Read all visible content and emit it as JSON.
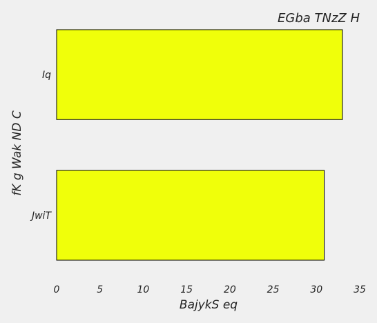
{
  "chart_data": {
    "type": "bar",
    "orientation": "horizontal",
    "title": "EGba  TNzZ H",
    "xlabel": "BajykS eq",
    "ylabel": "fK g Wak ND C",
    "categories": [
      "Iq",
      "JwiT"
    ],
    "values": [
      33.0,
      30.9
    ],
    "xlim": [
      0,
      35
    ],
    "xticks": [
      0,
      5,
      10,
      15,
      20,
      25,
      30,
      35
    ],
    "grid": false,
    "colors": {
      "bar": "#f0ff0a",
      "background": "#f0f0f0",
      "text": "#222222"
    }
  }
}
